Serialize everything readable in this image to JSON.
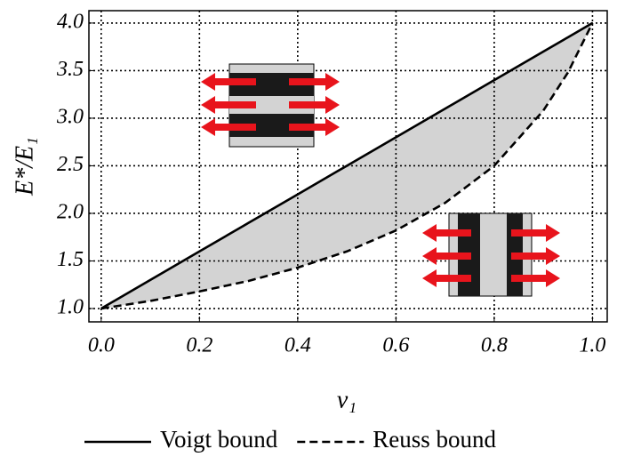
{
  "chart_data": {
    "type": "line",
    "x_label": "ν₁",
    "y_label": "E*/E₁",
    "x": [
      0,
      0.1,
      0.2,
      0.3,
      0.4,
      0.5,
      0.6,
      0.7,
      0.8,
      0.9,
      0.95,
      1.0
    ],
    "series": [
      {
        "name": "Voigt bound",
        "color": "#000000",
        "dash": "solid",
        "values": [
          1,
          1.3,
          1.6,
          1.9,
          2.2,
          2.5,
          2.8,
          3.1,
          3.4,
          3.7,
          3.85,
          4.0
        ]
      },
      {
        "name": "Reuss bound",
        "color": "#000000",
        "dash": "dashed",
        "values": [
          1,
          1.08,
          1.18,
          1.29,
          1.43,
          1.6,
          1.82,
          2.11,
          2.5,
          3.08,
          3.48,
          4.0
        ]
      }
    ],
    "fill_between": true,
    "fill_color": "#d3d3d3",
    "xlim": [
      -0.025,
      1.03
    ],
    "ylim": [
      0.86,
      4.13
    ],
    "xticks": [
      {
        "value": 0,
        "label": "0.0"
      },
      0.2,
      0.4,
      0.6,
      0.8,
      {
        "value": 1,
        "label": "1.0"
      }
    ],
    "yticks": [
      {
        "value": 1,
        "label": "1.0"
      },
      1.5,
      {
        "value": 2,
        "label": "2.0"
      },
      2.5,
      {
        "value": 3,
        "label": "3.0"
      },
      3.5,
      {
        "value": 4,
        "label": "4.0"
      }
    ],
    "grid": true,
    "legend": "bottom"
  }
}
